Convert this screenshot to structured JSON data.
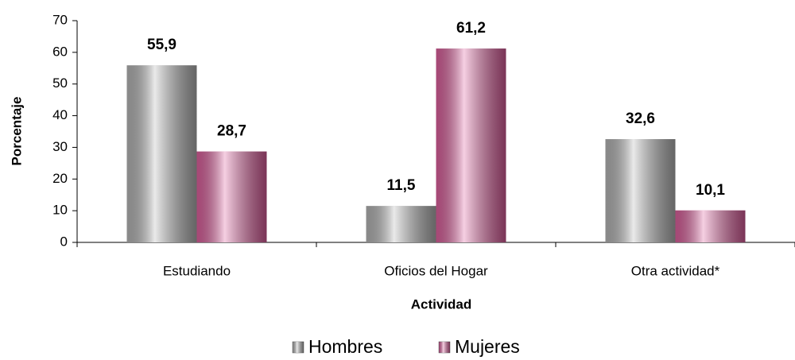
{
  "chart_data": {
    "type": "bar",
    "x_label": "Actividad",
    "y_label": "Porcentaje",
    "categories": [
      "Estudiando",
      "Oficios del Hogar",
      "Otra actividad*"
    ],
    "series": [
      {
        "name": "Hombres",
        "color": "#b8b8b8",
        "values": [
          55.9,
          11.5,
          32.6
        ],
        "value_labels": [
          "55,9",
          "11,5",
          "32,6"
        ]
      },
      {
        "name": "Mujeres",
        "color": "#e0609f",
        "values": [
          28.7,
          61.2,
          10.1
        ],
        "value_labels": [
          "28,7",
          "61,2",
          "10,1"
        ]
      }
    ],
    "ylim": [
      0,
      70
    ],
    "yticks": [
      0,
      10,
      20,
      30,
      40,
      50,
      60,
      70
    ],
    "grid": false,
    "legend": "bottom"
  }
}
